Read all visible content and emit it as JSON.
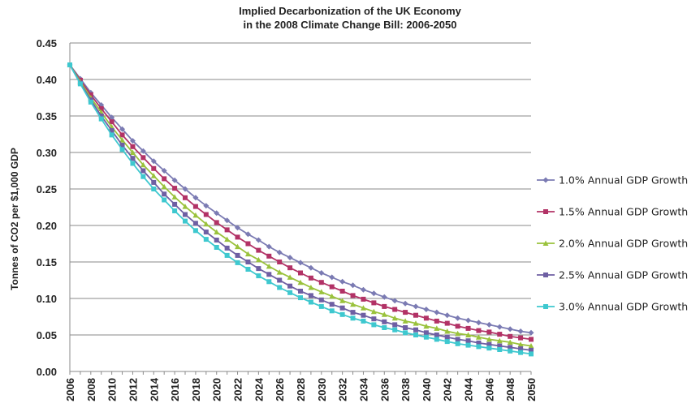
{
  "chart_data": {
    "type": "line",
    "title_lines": [
      "Implied Decarbonization of the UK Economy",
      "in the 2008 Climate Change Bill: 2006-2050"
    ],
    "xlabel": "",
    "ylabel": "Tonnes of CO2 per $1,000 GDP",
    "ylim": [
      0,
      0.45
    ],
    "yticks": [
      "0.00",
      "0.05",
      "0.10",
      "0.15",
      "0.20",
      "0.25",
      "0.30",
      "0.35",
      "0.40",
      "0.45"
    ],
    "xticks": [
      "2006",
      "2008",
      "2010",
      "2012",
      "2014",
      "2016",
      "2018",
      "2020",
      "2022",
      "2024",
      "2026",
      "2028",
      "2030",
      "2032",
      "2034",
      "2036",
      "2038",
      "2040",
      "2042",
      "2044",
      "2046",
      "2048",
      "2050"
    ],
    "x": [
      2006,
      2007,
      2008,
      2009,
      2010,
      2011,
      2012,
      2013,
      2014,
      2015,
      2016,
      2017,
      2018,
      2019,
      2020,
      2021,
      2022,
      2023,
      2024,
      2025,
      2026,
      2027,
      2028,
      2029,
      2030,
      2031,
      2032,
      2033,
      2034,
      2035,
      2036,
      2037,
      2038,
      2039,
      2040,
      2041,
      2042,
      2043,
      2044,
      2045,
      2046,
      2047,
      2048,
      2049,
      2050
    ],
    "grid": true,
    "legend_position": "right",
    "series": [
      {
        "name": "1.0% Annual GDP Growth",
        "color": "#7b7bb3",
        "marker": "diamond",
        "values": [
          0.42,
          0.401,
          0.382,
          0.365,
          0.348,
          0.332,
          0.316,
          0.302,
          0.288,
          0.275,
          0.262,
          0.25,
          0.238,
          0.227,
          0.217,
          0.207,
          0.197,
          0.188,
          0.18,
          0.171,
          0.163,
          0.156,
          0.149,
          0.142,
          0.135,
          0.129,
          0.123,
          0.118,
          0.112,
          0.107,
          0.102,
          0.097,
          0.093,
          0.089,
          0.085,
          0.081,
          0.077,
          0.073,
          0.07,
          0.067,
          0.064,
          0.061,
          0.058,
          0.055,
          0.053
        ]
      },
      {
        "name": "1.5% Annual GDP Growth",
        "color": "#b23266",
        "marker": "square",
        "values": [
          0.42,
          0.399,
          0.379,
          0.36,
          0.342,
          0.324,
          0.308,
          0.293,
          0.278,
          0.264,
          0.251,
          0.238,
          0.226,
          0.215,
          0.204,
          0.194,
          0.184,
          0.175,
          0.166,
          0.158,
          0.15,
          0.142,
          0.135,
          0.128,
          0.122,
          0.116,
          0.11,
          0.104,
          0.099,
          0.094,
          0.089,
          0.085,
          0.081,
          0.077,
          0.073,
          0.069,
          0.066,
          0.062,
          0.059,
          0.056,
          0.054,
          0.051,
          0.048,
          0.046,
          0.044
        ]
      },
      {
        "name": "2.0% Annual GDP Growth",
        "color": "#9ac23c",
        "marker": "triangle",
        "values": [
          0.42,
          0.397,
          0.375,
          0.355,
          0.335,
          0.317,
          0.3,
          0.283,
          0.268,
          0.253,
          0.239,
          0.226,
          0.214,
          0.202,
          0.191,
          0.181,
          0.171,
          0.161,
          0.153,
          0.144,
          0.136,
          0.129,
          0.122,
          0.115,
          0.109,
          0.103,
          0.097,
          0.092,
          0.087,
          0.082,
          0.078,
          0.073,
          0.069,
          0.066,
          0.062,
          0.059,
          0.055,
          0.052,
          0.05,
          0.047,
          0.044,
          0.042,
          0.04,
          0.037,
          0.035
        ]
      },
      {
        "name": "2.5% Annual GDP Growth",
        "color": "#6e5fa3",
        "marker": "square",
        "values": [
          0.42,
          0.395,
          0.372,
          0.35,
          0.33,
          0.31,
          0.292,
          0.275,
          0.259,
          0.243,
          0.229,
          0.215,
          0.203,
          0.191,
          0.18,
          0.169,
          0.159,
          0.15,
          0.141,
          0.133,
          0.125,
          0.117,
          0.11,
          0.104,
          0.098,
          0.092,
          0.087,
          0.081,
          0.077,
          0.072,
          0.068,
          0.064,
          0.06,
          0.057,
          0.053,
          0.05,
          0.047,
          0.044,
          0.042,
          0.039,
          0.037,
          0.035,
          0.033,
          0.031,
          0.029
        ]
      },
      {
        "name": "3.0% Annual GDP Growth",
        "color": "#3ec8cf",
        "marker": "square",
        "values": [
          0.42,
          0.394,
          0.369,
          0.346,
          0.324,
          0.304,
          0.285,
          0.267,
          0.25,
          0.235,
          0.22,
          0.206,
          0.193,
          0.181,
          0.17,
          0.159,
          0.149,
          0.14,
          0.131,
          0.123,
          0.115,
          0.108,
          0.101,
          0.095,
          0.089,
          0.083,
          0.078,
          0.073,
          0.069,
          0.064,
          0.06,
          0.057,
          0.053,
          0.05,
          0.047,
          0.044,
          0.041,
          0.038,
          0.036,
          0.034,
          0.032,
          0.03,
          0.028,
          0.026,
          0.024
        ]
      }
    ]
  }
}
